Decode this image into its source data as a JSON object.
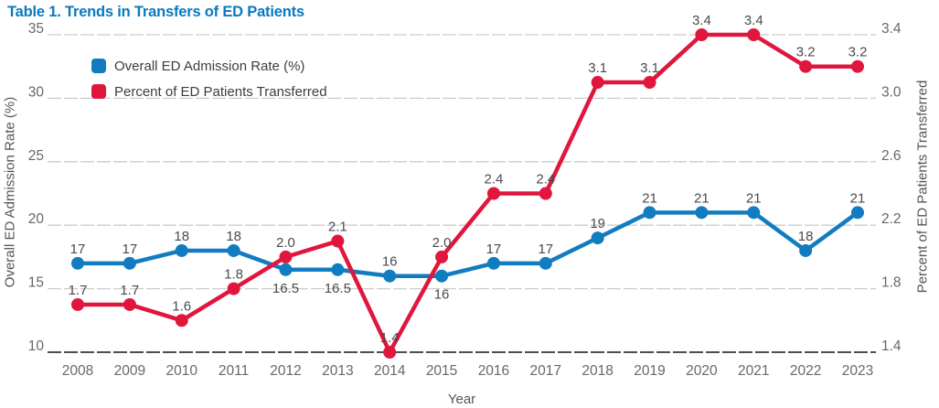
{
  "title": "Table 1. Trends in Transfers of ED Patients",
  "colors": {
    "blue": "#127CC0",
    "red": "#E0163D",
    "title_text": "#0979BE",
    "grid": "#cccccc",
    "axis_line": "#4e4e50",
    "tick_text": "#68686c",
    "data_label_text": "#4b4b4d",
    "axis_title_text": "#555557",
    "legend_text": "#3d3d3f"
  },
  "legend": {
    "items": [
      {
        "label": "Overall ED Admission Rate (%)",
        "color_key": "blue"
      },
      {
        "label": "Percent of ED Patients Transferred",
        "color_key": "red"
      }
    ]
  },
  "axes": {
    "left_title": "Overall ED Admission Rate (%)",
    "right_title": "Percent of ED Patients Transferred",
    "x_title": "Year"
  },
  "chart_data": {
    "type": "line",
    "title": "Table 1. Trends in Transfers of ED Patients",
    "xlabel": "Year",
    "grid": "horizontal-dashed",
    "legend_position": "top-left-inside",
    "x_categories": [
      "2008",
      "2009",
      "2010",
      "2011",
      "2012",
      "2013",
      "2014",
      "2015",
      "2016",
      "2017",
      "2018",
      "2019",
      "2020",
      "2021",
      "2022",
      "2023"
    ],
    "left_axis": {
      "label": "Overall ED Admission Rate (%)",
      "ylim": [
        10,
        35
      ],
      "ticks": [
        "10",
        "15",
        "20",
        "25",
        "30",
        "35"
      ]
    },
    "right_axis": {
      "label": "Percent of ED Patients Transferred",
      "ylim": [
        1.4,
        3.4
      ],
      "ticks": [
        "1.4",
        "1.8",
        "2.2",
        "2.6",
        "3.0",
        "3.4"
      ]
    },
    "series": [
      {
        "name": "Overall ED Admission Rate (%)",
        "axis": "left",
        "color_key": "blue",
        "values": [
          17,
          17,
          18,
          18,
          16.5,
          16.5,
          16,
          16,
          17,
          17,
          19,
          21,
          21,
          21,
          18,
          21
        ],
        "point_labels": [
          "17",
          "17",
          "18",
          "18",
          "16.5",
          "16.5",
          "16",
          "16",
          "17",
          "17",
          "19",
          "21",
          "21",
          "21",
          "18",
          "21"
        ],
        "label_position": [
          "above",
          "above",
          "above",
          "above",
          "below",
          "below",
          "above",
          "below",
          "above",
          "above",
          "above",
          "above",
          "above",
          "above",
          "above",
          "above"
        ]
      },
      {
        "name": "Percent of ED Patients Transferred",
        "axis": "right",
        "color_key": "red",
        "values": [
          1.7,
          1.7,
          1.6,
          1.8,
          2.0,
          2.1,
          1.4,
          2.0,
          2.4,
          2.4,
          3.1,
          3.1,
          3.4,
          3.4,
          3.2,
          3.2
        ],
        "point_labels": [
          "1.7",
          "1.7",
          "1.6",
          "1.8",
          "2.0",
          "2.1",
          "1.4",
          "2.0",
          "2.4",
          "2.4",
          "3.1",
          "3.1",
          "3.4",
          "3.4",
          "3.2",
          "3.2"
        ],
        "label_position": [
          "above",
          "above",
          "above",
          "above",
          "above",
          "above",
          "above",
          "above",
          "above",
          "above",
          "above",
          "above",
          "above",
          "above",
          "above",
          "above"
        ]
      }
    ]
  }
}
